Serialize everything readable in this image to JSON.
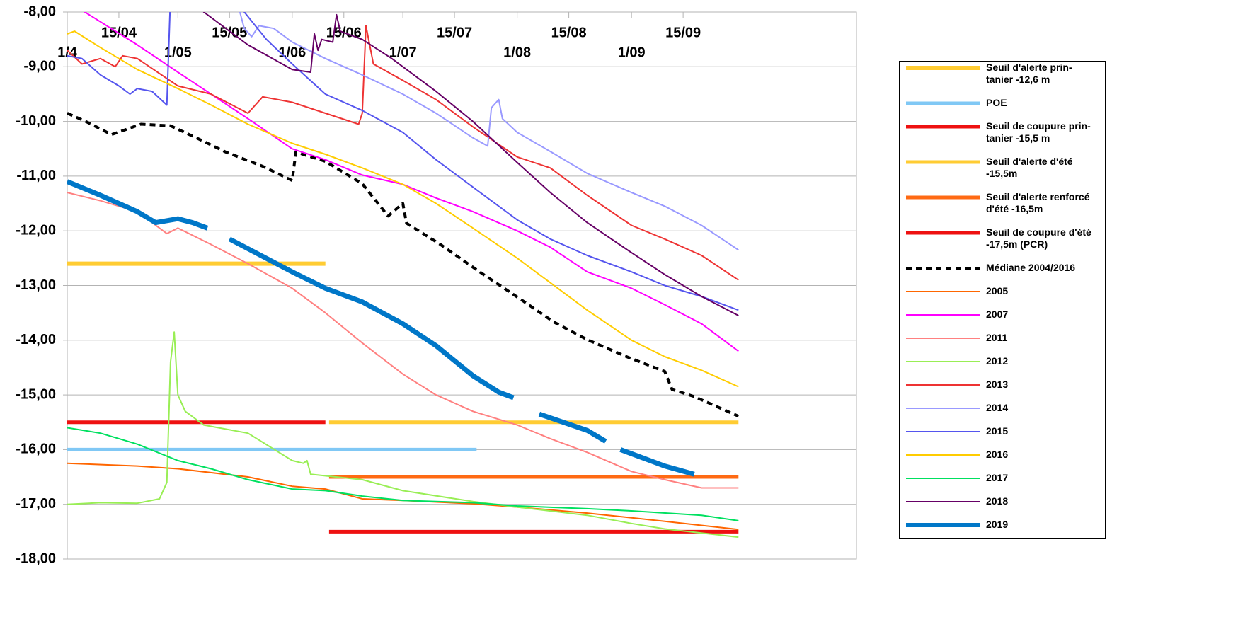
{
  "chart_data": {
    "type": "line",
    "xlim": [
      "1/4",
      "1/11"
    ],
    "ylim": [
      -18,
      -8
    ],
    "xticks": [
      "1/4",
      "15/04",
      "1/05",
      "15/05",
      "1/06",
      "15/06",
      "1/07",
      "15/07",
      "1/08",
      "15/08",
      "1/09",
      "15/09"
    ],
    "yticks": [
      {
        "value": -18,
        "label": "-18,00"
      },
      {
        "value": -17,
        "label": "-17,00"
      },
      {
        "value": -16,
        "label": "-16,00"
      },
      {
        "value": -15,
        "label": "-15,00"
      },
      {
        "value": -14,
        "label": "-14,00"
      },
      {
        "value": -13,
        "label": "-13,00"
      },
      {
        "value": -12,
        "label": "-12,00"
      },
      {
        "value": -11,
        "label": "-11,00"
      },
      {
        "value": -10,
        "label": "-10,00"
      },
      {
        "value": -9,
        "label": "-9,00"
      },
      {
        "value": -8,
        "label": "-8,00"
      }
    ],
    "grid": true,
    "legend": "right",
    "series": [
      {
        "name": "Seuil d'alerte prin-\ntanier -12,6 m",
        "color": "#ffcc33",
        "linewidth": 6,
        "x": [
          "1/4",
          "10/6"
        ],
        "values": [
          -12.6,
          -12.6
        ]
      },
      {
        "name": "POE",
        "color": "#80c8f5",
        "linewidth": 5,
        "x": [
          "1/4",
          "21/7"
        ],
        "values": [
          -16,
          -16
        ]
      },
      {
        "name": "Seuil de coupure prin-\ntanier -15,5 m",
        "color": "#ee1111",
        "linewidth": 5,
        "x": [
          "1/4",
          "10/6"
        ],
        "values": [
          -15.5,
          -15.5
        ]
      },
      {
        "name": "Seuil d'alerte d'été\n-15,5m",
        "color": "#ffcc33",
        "linewidth": 5,
        "x": [
          "11/6",
          "30/9"
        ],
        "values": [
          -15.5,
          -15.5
        ]
      },
      {
        "name": "Seuil d'alerte renforcé\nd'été -16,5m",
        "color": "#ff6a13",
        "linewidth": 5,
        "x": [
          "11/6",
          "30/9"
        ],
        "values": [
          -16.5,
          -16.5
        ]
      },
      {
        "name": "Seuil de coupure d'été\n-17,5m (PCR)",
        "color": "#ee1111",
        "linewidth": 5,
        "x": [
          "11/6",
          "30/9"
        ],
        "values": [
          -17.5,
          -17.5
        ]
      },
      {
        "name": "Médiane 2004/2016",
        "color": "#000000",
        "linewidth": 4,
        "dash": "dashed",
        "x": [
          "1/4",
          "6/4",
          "13/4",
          "21/4",
          "29/4",
          "6/5",
          "14/5",
          "24/5",
          "1/6",
          "2/6",
          "10/6",
          "20/6",
          "27/6",
          "1/7",
          "2/7",
          "11/7",
          "22/7",
          "1/8",
          "11/8",
          "20/8",
          "31/8",
          "10/9",
          "12/9",
          "18/9",
          "30/9"
        ],
        "values": [
          -9.85,
          -10.0,
          -10.24,
          -10.05,
          -10.08,
          -10.3,
          -10.56,
          -10.82,
          -11.08,
          -10.56,
          -10.73,
          -11.14,
          -11.73,
          -11.5,
          -11.86,
          -12.24,
          -12.76,
          -13.21,
          -13.67,
          -13.99,
          -14.31,
          -14.57,
          -14.9,
          -15.03,
          -15.39
        ]
      },
      {
        "name": "2005",
        "color": "#ff6600",
        "linewidth": 2,
        "x": [
          "1/4",
          "20/4",
          "1/5",
          "20/5",
          "1/6",
          "10/6",
          "20/6",
          "1/7",
          "20/7",
          "1/8",
          "20/8",
          "10/9",
          "30/9"
        ],
        "values": [
          -16.25,
          -16.3,
          -16.35,
          -16.5,
          -16.67,
          -16.72,
          -16.9,
          -16.93,
          -16.99,
          -17.05,
          -17.16,
          -17.31,
          -17.46
        ]
      },
      {
        "name": "2007",
        "color": "#ff00ff",
        "linewidth": 2,
        "x": [
          "1/4",
          "20/4",
          "1/5",
          "10/5",
          "20/5",
          "1/6",
          "10/6",
          "20/6",
          "1/7",
          "10/7",
          "20/7",
          "1/8",
          "10/8",
          "20/8",
          "1/9",
          "10/9",
          "20/9",
          "30/9"
        ],
        "values": [
          -7.8,
          -8.6,
          -9.1,
          -9.5,
          -9.95,
          -10.5,
          -10.7,
          -10.98,
          -11.15,
          -11.4,
          -11.65,
          -12.0,
          -12.3,
          -12.75,
          -13.05,
          -13.35,
          -13.7,
          -14.2
        ]
      },
      {
        "name": "2011",
        "color": "#ff8080",
        "linewidth": 2,
        "x": [
          "1/4",
          "10/4",
          "20/4",
          "28/4",
          "1/5",
          "10/5",
          "20/5",
          "1/6",
          "10/6",
          "20/6",
          "1/7",
          "10/7",
          "20/7",
          "1/8",
          "10/8",
          "20/8",
          "1/9",
          "10/9",
          "20/9",
          "30/9"
        ],
        "values": [
          -11.3,
          -11.45,
          -11.65,
          -12.05,
          -11.95,
          -12.25,
          -12.6,
          -13.05,
          -13.5,
          -14.05,
          -14.62,
          -15.0,
          -15.3,
          -15.55,
          -15.8,
          -16.05,
          -16.4,
          -16.55,
          -16.7,
          -16.7
        ]
      },
      {
        "name": "2012",
        "color": "#99ee55",
        "linewidth": 2,
        "x": [
          "1/4",
          "10/4",
          "20/4",
          "26/4",
          "28/4",
          "29/4",
          "30/4",
          "1/5",
          "3/5",
          "8/5",
          "20/5",
          "1/6",
          "4/6",
          "5/6",
          "6/6",
          "20/6",
          "1/7",
          "20/7",
          "1/8",
          "20/8",
          "1/9",
          "10/9",
          "30/9"
        ],
        "values": [
          -17.0,
          -16.97,
          -16.98,
          -16.9,
          -16.6,
          -14.4,
          -13.85,
          -15.0,
          -15.3,
          -15.55,
          -15.7,
          -16.2,
          -16.25,
          -16.2,
          -16.45,
          -16.55,
          -16.75,
          -16.95,
          -17.05,
          -17.2,
          -17.35,
          -17.45,
          -17.6
        ]
      },
      {
        "name": "2013",
        "color": "#ee3333",
        "linewidth": 2,
        "x": [
          "1/4",
          "5/4",
          "10/4",
          "14/4",
          "16/4",
          "20/4",
          "1/5",
          "10/5",
          "20/5",
          "24/5",
          "1/6",
          "10/6",
          "19/6",
          "20/6",
          "21/6",
          "23/6",
          "1/7",
          "10/7",
          "20/7",
          "1/8",
          "10/8",
          "20/8",
          "1/9",
          "10/9",
          "20/9",
          "30/9"
        ],
        "values": [
          -8.7,
          -8.95,
          -8.85,
          -9.0,
          -8.8,
          -8.85,
          -9.35,
          -9.5,
          -9.85,
          -9.55,
          -9.65,
          -9.85,
          -10.05,
          -9.85,
          -8.25,
          -8.95,
          -9.25,
          -9.6,
          -10.1,
          -10.65,
          -10.85,
          -11.35,
          -11.9,
          -12.15,
          -12.45,
          -12.9
        ]
      },
      {
        "name": "2014",
        "color": "#9999ff",
        "linewidth": 2,
        "x": [
          "17/5",
          "19/5",
          "21/5",
          "23/5",
          "27/5",
          "1/6",
          "10/6",
          "20/6",
          "1/7",
          "10/7",
          "20/7",
          "24/7",
          "25/7",
          "27/7",
          "28/7",
          "1/8",
          "10/8",
          "20/8",
          "1/9",
          "10/9",
          "20/9",
          "30/9"
        ],
        "values": [
          -7.8,
          -8.3,
          -8.45,
          -8.25,
          -8.3,
          -8.55,
          -8.85,
          -9.15,
          -9.5,
          -9.85,
          -10.3,
          -10.45,
          -9.75,
          -9.6,
          -9.95,
          -10.2,
          -10.55,
          -10.95,
          -11.3,
          -11.55,
          -11.9,
          -12.35
        ]
      },
      {
        "name": "2015",
        "color": "#5555ee",
        "linewidth": 2,
        "x": [
          "1/4",
          "5/4",
          "10/4",
          "15/4",
          "18/4",
          "20/4",
          "24/4",
          "28/4",
          "29/4",
          "15/5",
          "19/5",
          "25/5",
          "1/6",
          "10/6",
          "20/6",
          "1/7",
          "10/7",
          "20/7",
          "1/8",
          "10/8",
          "20/8",
          "1/9",
          "10/9",
          "20/9",
          "30/9"
        ],
        "values": [
          -8.8,
          -8.85,
          -9.15,
          -9.35,
          -9.5,
          -9.4,
          -9.45,
          -9.7,
          -7.7,
          -7.7,
          -8.0,
          -8.5,
          -8.95,
          -9.5,
          -9.8,
          -10.2,
          -10.7,
          -11.2,
          -11.8,
          -12.15,
          -12.45,
          -12.75,
          -13.0,
          -13.2,
          -13.45
        ]
      },
      {
        "name": "2016",
        "color": "#ffcc00",
        "linewidth": 2,
        "x": [
          "1/4",
          "3/4",
          "10/4",
          "20/4",
          "1/5",
          "10/5",
          "20/5",
          "1/6",
          "10/6",
          "20/6",
          "1/7",
          "10/7",
          "20/7",
          "1/8",
          "10/8",
          "20/8",
          "1/9",
          "10/9",
          "20/9",
          "30/9"
        ],
        "values": [
          -8.4,
          -8.35,
          -8.65,
          -9.05,
          -9.4,
          -9.7,
          -10.05,
          -10.4,
          -10.6,
          -10.85,
          -11.15,
          -11.5,
          -11.95,
          -12.5,
          -12.95,
          -13.45,
          -14.0,
          -14.3,
          -14.55,
          -14.85
        ]
      },
      {
        "name": "2017",
        "color": "#00e060",
        "linewidth": 2,
        "x": [
          "1/4",
          "10/4",
          "20/4",
          "1/5",
          "10/5",
          "20/5",
          "1/6",
          "10/6",
          "20/6",
          "1/7",
          "20/7",
          "1/8",
          "20/8",
          "1/9",
          "20/9",
          "30/9"
        ],
        "values": [
          -15.6,
          -15.7,
          -15.9,
          -16.2,
          -16.35,
          -16.55,
          -16.72,
          -16.75,
          -16.85,
          -16.93,
          -16.97,
          -17.03,
          -17.08,
          -17.12,
          -17.2,
          -17.3
        ]
      },
      {
        "name": "2018",
        "color": "#660066",
        "linewidth": 2,
        "x": [
          "6/5",
          "8/5",
          "20/5",
          "1/6",
          "6/6",
          "7/6",
          "8/6",
          "9/6",
          "12/6",
          "13/6",
          "14/6",
          "20/6",
          "28/6",
          "1/7",
          "10/7",
          "20/7",
          "1/8",
          "10/8",
          "20/8",
          "1/9",
          "10/9",
          "20/9",
          "30/9"
        ],
        "values": [
          -7.8,
          -8.0,
          -8.6,
          -9.05,
          -9.1,
          -8.4,
          -8.7,
          -8.5,
          -8.55,
          -8.05,
          -8.35,
          -8.5,
          -8.85,
          -9.0,
          -9.45,
          -10.0,
          -10.75,
          -11.3,
          -11.85,
          -12.4,
          -12.8,
          -13.2,
          -13.55
        ]
      },
      {
        "name": "2019",
        "color": "#0077c8",
        "linewidth": 7,
        "x": [
          "1/4",
          "10/4",
          "20/4",
          "25/4",
          "1/5",
          "5/5",
          "9/5",
          "12/5",
          "15/5",
          "1/6",
          "10/6",
          "20/6",
          "1/7",
          "10/7",
          "20/7",
          "27/7",
          "31/7",
          "4/8",
          "7/8",
          "20/8",
          "25/8",
          "27/8",
          "29/8",
          "10/9",
          "18/9"
        ],
        "values": [
          -11.1,
          -11.35,
          -11.65,
          -11.85,
          -11.78,
          -11.85,
          -11.95,
          null,
          -12.15,
          -12.75,
          -13.05,
          -13.3,
          -13.7,
          -14.1,
          -14.65,
          -14.95,
          -15.05,
          null,
          -15.35,
          -15.65,
          -15.85,
          null,
          -16.0,
          -16.3,
          -16.45
        ]
      }
    ]
  }
}
